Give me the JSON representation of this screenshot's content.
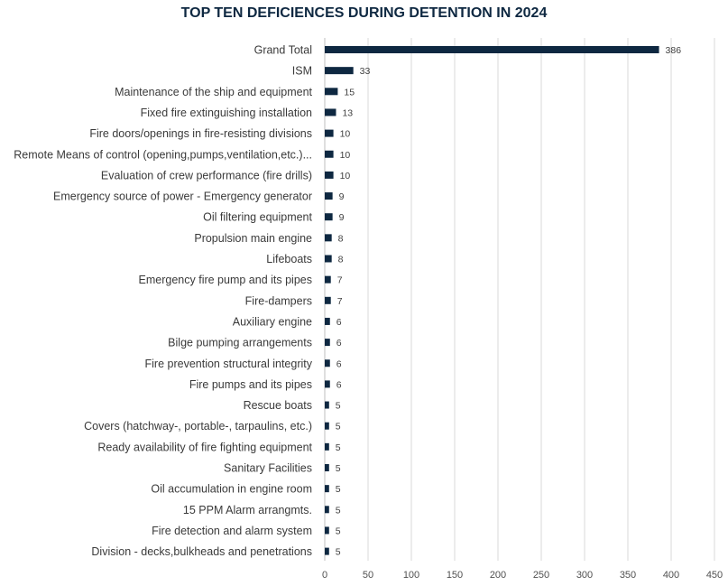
{
  "chart_data": {
    "type": "bar",
    "orientation": "horizontal",
    "title": "TOP TEN DEFICIENCES DURING DETENTION IN 2024",
    "categories": [
      "Grand Total",
      "ISM",
      "Maintenance of the ship and equipment",
      "Fixed fire extinguishing installation",
      "Fire doors/openings in fire-resisting divisions",
      "Remote Means of control (opening,pumps,ventilation,etc.)...",
      "Evaluation of crew performance (fire drills)",
      "Emergency source of power - Emergency generator",
      "Oil filtering equipment",
      "Propulsion main engine",
      "Lifeboats",
      "Emergency fire pump and its pipes",
      "Fire-dampers",
      "Auxiliary engine",
      "Bilge pumping arrangements",
      "Fire prevention structural integrity",
      "Fire pumps and its pipes",
      "Rescue boats",
      "Covers (hatchway-, portable-, tarpaulins, etc.)",
      "Ready availability of fire fighting equipment",
      "Sanitary Facilities",
      "Oil accumulation in engine room",
      "15 PPM Alarm arrangmts.",
      "Fire detection and alarm system",
      "Division - decks,bulkheads and penetrations"
    ],
    "values": [
      386,
      33,
      15,
      13,
      10,
      10,
      10,
      9,
      9,
      8,
      8,
      7,
      7,
      6,
      6,
      6,
      6,
      5,
      5,
      5,
      5,
      5,
      5,
      5,
      5
    ],
    "xlim": [
      0,
      450
    ],
    "xticks": [
      0,
      50,
      100,
      150,
      200,
      250,
      300,
      350,
      400,
      450
    ],
    "grid": true,
    "data_labels": true,
    "bar_color": "#0e2841",
    "grid_color": "#d9d9d9"
  }
}
